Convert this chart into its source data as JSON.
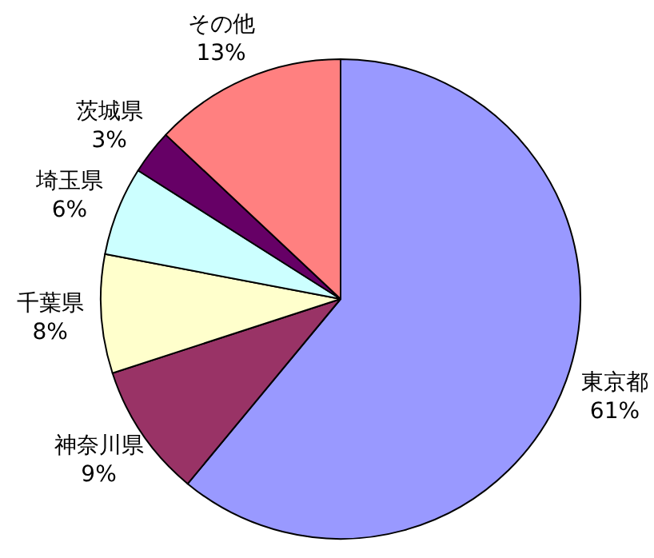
{
  "chart_data": {
    "type": "pie",
    "categories": [
      "東京都",
      "神奈川県",
      "千葉県",
      "埼玉県",
      "茨城県",
      "その他"
    ],
    "values": [
      61,
      9,
      8,
      6,
      3,
      13
    ],
    "value_labels": [
      "61%",
      "9%",
      "8%",
      "6%",
      "3%",
      "13%"
    ],
    "colors": [
      "#9999ff",
      "#993366",
      "#ffffcc",
      "#ccffff",
      "#660066",
      "#ff8080"
    ]
  }
}
